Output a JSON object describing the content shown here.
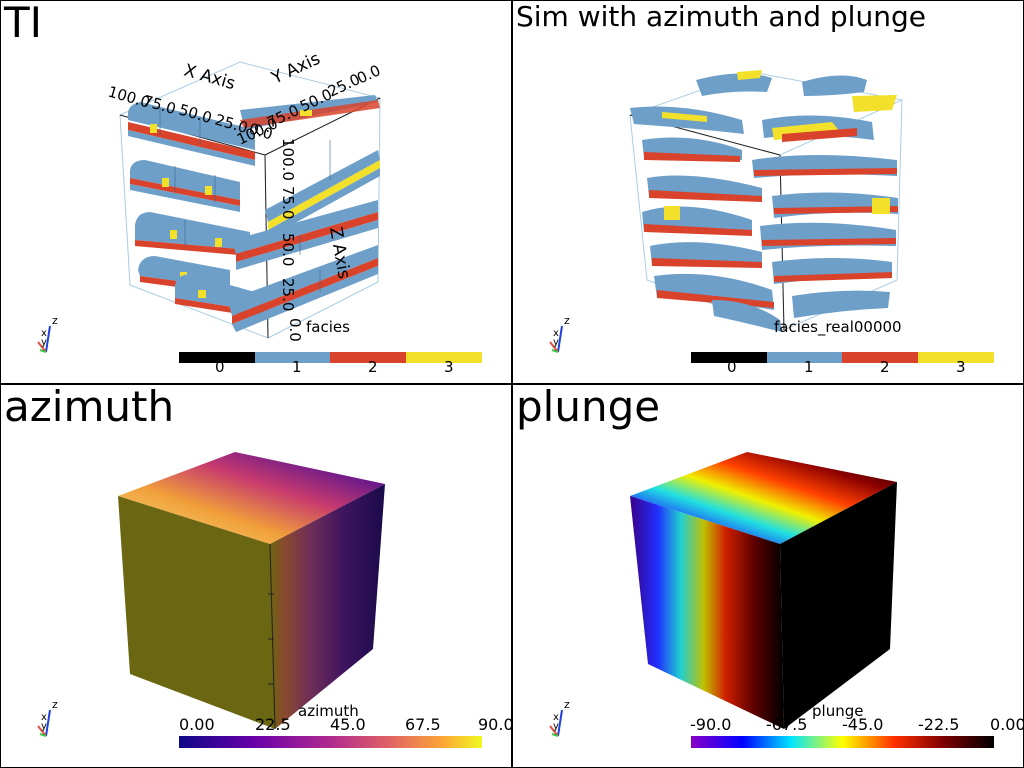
{
  "panels": {
    "ti": {
      "title": "TI",
      "axes": {
        "x_title": "X Axis",
        "y_title": "Y Axis",
        "z_title": "Z Axis",
        "x_ticks": [
          "100.0",
          "75.0",
          "50.0",
          "25.0",
          "0.0"
        ],
        "y_ticks": [
          "100.0",
          "75.0",
          "50.0",
          "25.0",
          "0.0"
        ],
        "z_ticks": [
          "100.0",
          "75.0",
          "50.0",
          "25.0",
          "0.0"
        ]
      },
      "colorbar": {
        "title": "facies",
        "labels": [
          "0",
          "1",
          "2",
          "3"
        ]
      }
    },
    "sim": {
      "title": "Sim with azimuth and plunge",
      "colorbar": {
        "title": "facies_real00000",
        "labels": [
          "0",
          "1",
          "2",
          "3"
        ]
      }
    },
    "azimuth": {
      "title": "azimuth",
      "colorbar": {
        "title": "azimuth",
        "labels": [
          "0.00",
          "22.5",
          "45.0",
          "67.5",
          "90.0"
        ]
      }
    },
    "plunge": {
      "title": "plunge",
      "colorbar": {
        "title": "plunge",
        "labels": [
          "-90.0",
          "-67.5",
          "-45.0",
          "-22.5",
          "0.00"
        ]
      }
    }
  },
  "orientation_widget": {
    "x_label": "x",
    "y_label": "y",
    "z_label": "z"
  },
  "colors": {
    "facies_0": "#000000",
    "facies_1": "#6e9fc9",
    "facies_2": "#d9432b",
    "facies_3": "#f2e02a",
    "axis_x": "#e0503a",
    "axis_y": "#3fbf4c",
    "axis_z": "#1f3fe0",
    "azimuth_face": "#6b6612"
  }
}
